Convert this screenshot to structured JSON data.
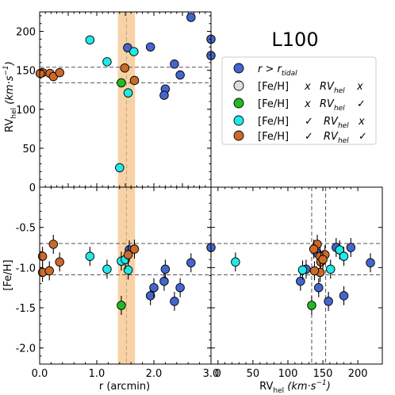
{
  "chart_data": [
    {
      "type": "scatter",
      "panel": "top-left",
      "xlim": [
        0.0,
        3.0
      ],
      "ylim": [
        0,
        225
      ],
      "ylabel_main": "RV",
      "ylabel_sub": "hel",
      "ylabel_unit": "(km·s",
      "ylabel_exp": "−1",
      "ylabel_close": ")",
      "xticks": [
        0.0,
        0.5,
        1.0,
        1.5,
        2.0,
        2.5,
        3.0
      ],
      "yticks": [
        0,
        50,
        100,
        150,
        200
      ],
      "ytick_labels": [
        "0",
        "50",
        "100",
        "150",
        "200"
      ],
      "hlines": [
        154,
        134
      ],
      "vline": 1.52,
      "band": [
        1.37,
        1.67
      ],
      "series": [
        {
          "key": "rtidal",
          "points": [
            [
              1.94,
              180
            ],
            [
              2.65,
              218
            ],
            [
              2.36,
              158
            ],
            [
              2.46,
              144
            ],
            [
              2.2,
              126
            ],
            [
              2.18,
              118
            ],
            [
              1.54,
              179
            ],
            [
              3.0,
              169
            ],
            [
              3.0,
              190
            ]
          ]
        },
        {
          "key": "fe_x_rv_ok",
          "points": [
            [
              1.43,
              134
            ]
          ]
        },
        {
          "key": "fe_ok_rv_x",
          "points": [
            [
              0.88,
              189
            ],
            [
              1.18,
              161
            ],
            [
              1.4,
              25
            ],
            [
              1.55,
              121
            ],
            [
              1.65,
              174
            ]
          ]
        },
        {
          "key": "fe_ok_rv_ok",
          "points": [
            [
              0.05,
              147
            ],
            [
              0.01,
              146
            ],
            [
              0.18,
              146
            ],
            [
              0.24,
              142
            ],
            [
              0.35,
              147
            ],
            [
              1.49,
              153
            ],
            [
              1.66,
              137
            ]
          ]
        }
      ]
    },
    {
      "type": "scatter",
      "panel": "bottom-left",
      "xlim": [
        0.0,
        3.0
      ],
      "ylim": [
        -2.2,
        0.0
      ],
      "xlabel": "r (arcmin)",
      "ylabel": "[Fe/H]",
      "xticks": [
        0.0,
        1.0,
        2.0,
        3.0
      ],
      "xtick_labels": [
        "0.0",
        "1.0",
        "2.0",
        "3.0"
      ],
      "yticks": [
        -0.5,
        -1.0,
        -1.5,
        -2.0
      ],
      "ytick_labels": [
        "-0.5",
        "-1.0",
        "-1.5",
        "-2.0"
      ],
      "hlines": [
        -0.7,
        -1.09
      ],
      "vline": 1.52,
      "band": [
        1.37,
        1.67
      ],
      "series": [
        {
          "key": "rtidal",
          "points": [
            [
              1.94,
              -1.35
            ],
            [
              2.0,
              -1.25
            ],
            [
              2.18,
              -1.17
            ],
            [
              2.2,
              -1.02
            ],
            [
              2.36,
              -1.42
            ],
            [
              2.46,
              -1.25
            ],
            [
              2.65,
              -0.94
            ],
            [
              1.57,
              -0.78
            ],
            [
              3.0,
              -0.75
            ]
          ]
        },
        {
          "key": "fe_x_rv_ok",
          "points": [
            [
              1.43,
              -1.47
            ]
          ]
        },
        {
          "key": "fe_ok_rv_x",
          "points": [
            [
              0.88,
              -0.86
            ],
            [
              1.18,
              -1.02
            ],
            [
              1.43,
              -0.92
            ],
            [
              1.55,
              -1.03
            ],
            [
              1.5,
              -0.9
            ]
          ]
        },
        {
          "key": "fe_ok_rv_ok",
          "points": [
            [
              0.05,
              -0.86
            ],
            [
              0.05,
              -1.06
            ],
            [
              0.17,
              -1.04
            ],
            [
              0.24,
              -0.71
            ],
            [
              0.35,
              -0.93
            ],
            [
              1.55,
              -0.84
            ],
            [
              1.66,
              -0.77
            ]
          ]
        }
      ]
    },
    {
      "type": "scatter",
      "panel": "bottom-right",
      "xlim": [
        -10,
        235
      ],
      "ylim": [
        -2.2,
        0.0
      ],
      "xlabel_main": "RV",
      "xlabel_sub": "hel",
      "xlabel_unit": "(km·s",
      "xlabel_exp": "−1",
      "xlabel_close": ")",
      "xticks": [
        0,
        50,
        100,
        150,
        200
      ],
      "xtick_labels": [
        "0",
        "50",
        "100",
        "150",
        "200"
      ],
      "hlines": [
        -0.7,
        -1.09
      ],
      "vlines": [
        134,
        154
      ],
      "series": [
        {
          "key": "rtidal",
          "points": [
            [
              118,
              -1.17
            ],
            [
              126,
              -1.02
            ],
            [
              144,
              -1.25
            ],
            [
              158,
              -1.42
            ],
            [
              169,
              -0.75
            ],
            [
              180,
              -1.35
            ],
            [
              190,
              -0.75
            ],
            [
              218,
              -0.94
            ],
            [
              142,
              -0.82
            ]
          ]
        },
        {
          "key": "fe_x_rv_ok",
          "points": [
            [
              134,
              -1.47
            ]
          ]
        },
        {
          "key": "fe_ok_rv_x",
          "points": [
            [
              25,
              -0.93
            ],
            [
              121,
              -1.03
            ],
            [
              161,
              -1.02
            ],
            [
              174,
              -0.78
            ],
            [
              180,
              -0.86
            ]
          ]
        },
        {
          "key": "fe_ok_rv_ok",
          "points": [
            [
              142,
              -0.71
            ],
            [
              137,
              -0.77
            ],
            [
              146,
              -0.86
            ],
            [
              147,
              -0.93
            ],
            [
              146,
              -1.06
            ],
            [
              153,
              -0.84
            ],
            [
              138,
              -1.04
            ],
            [
              150,
              -0.9
            ]
          ]
        }
      ]
    }
  ],
  "panel_title": "L100",
  "legend": {
    "placement": "right",
    "entries": [
      {
        "key": "rtidal",
        "color": "#4466cc",
        "parts": {
          "a": "r > r",
          "b": "tidal"
        }
      },
      {
        "key": "fe_x_rv_x",
        "color": "#dddddd",
        "parts": {
          "a": "[Fe/H]",
          "b": "x",
          "c": "RV",
          "d": "hel",
          "e": "x"
        }
      },
      {
        "key": "fe_x_rv_ok",
        "color": "#22bb22",
        "parts": {
          "a": "[Fe/H]",
          "b": "x",
          "c": "RV",
          "d": "hel",
          "e": "✓"
        }
      },
      {
        "key": "fe_ok_rv_x",
        "color": "#22e8e8",
        "parts": {
          "a": "[Fe/H]",
          "b": "✓",
          "c": "RV",
          "d": "hel",
          "e": "x"
        }
      },
      {
        "key": "fe_ok_rv_ok",
        "color": "#cc6a2a",
        "parts": {
          "a": "[Fe/H]",
          "b": "✓",
          "c": "RV",
          "d": "hel",
          "e": "✓"
        }
      }
    ]
  },
  "colors": {
    "band": "#f7d2a6",
    "refline": "#555555",
    "marker_edge": "#000000",
    "errorbar": "#000000"
  }
}
